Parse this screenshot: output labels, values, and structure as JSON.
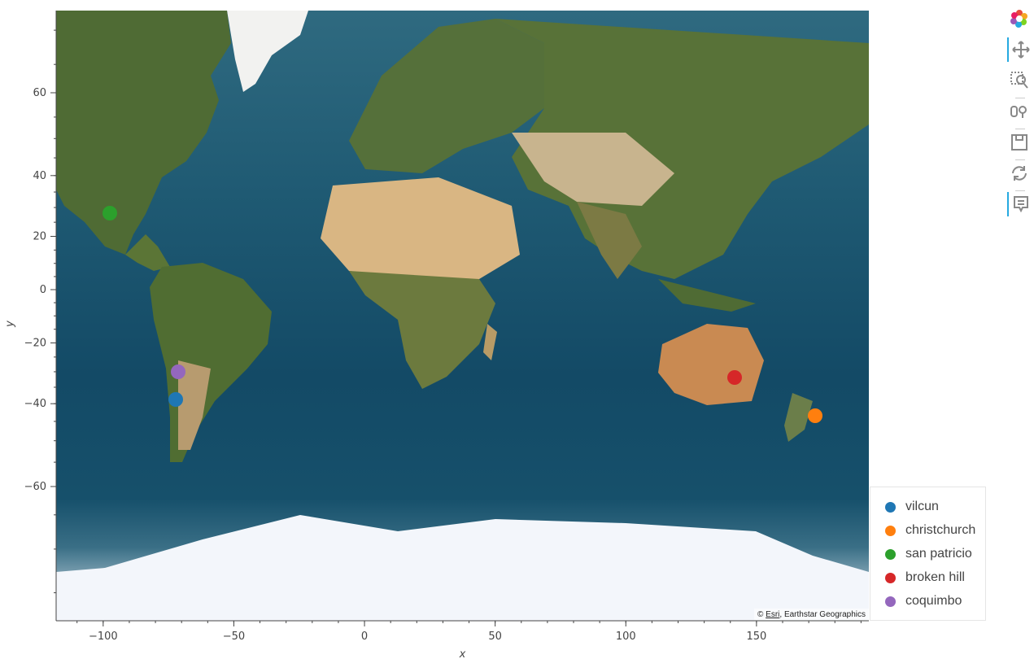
{
  "chart": {
    "type": "scatter",
    "basemap": "satellite-imagery",
    "xlabel": "x",
    "ylabel": "y",
    "xlim": [
      -118,
      193
    ],
    "x_ticks": [
      -100,
      -50,
      0,
      50,
      100,
      150
    ],
    "x_tick_labels": [
      "−100",
      "−50",
      "0",
      "50",
      "100",
      "150"
    ],
    "y_ticks": [
      60,
      40,
      20,
      0,
      -20,
      -40,
      -60
    ],
    "y_tick_labels": [
      "60",
      "40",
      "20",
      "0",
      "−20",
      "−40",
      "−60"
    ],
    "grid": false
  },
  "chart_data": {
    "type": "scatter",
    "series": [
      {
        "name": "vilcun",
        "x": -72.2,
        "y": -38.7,
        "color": "#1f77b4"
      },
      {
        "name": "christchurch",
        "x": 172.6,
        "y": -43.5,
        "color": "#ff7f0e"
      },
      {
        "name": "san patricio",
        "x": -97.5,
        "y": 28.0,
        "color": "#2ca02c"
      },
      {
        "name": "broken hill",
        "x": 141.5,
        "y": -31.9,
        "color": "#d62728"
      },
      {
        "name": "coquimbo",
        "x": -71.3,
        "y": -29.9,
        "color": "#9467bd"
      }
    ]
  },
  "attribution": {
    "prefix": "© ",
    "esri": "Esri",
    "rest": ", Earthstar Geographics"
  },
  "toolbar": {
    "tools": [
      "bokeh-logo-icon",
      "pan-icon",
      "box-zoom-icon",
      "wheel-zoom-icon",
      "save-icon",
      "reset-icon",
      "hover-icon"
    ]
  }
}
